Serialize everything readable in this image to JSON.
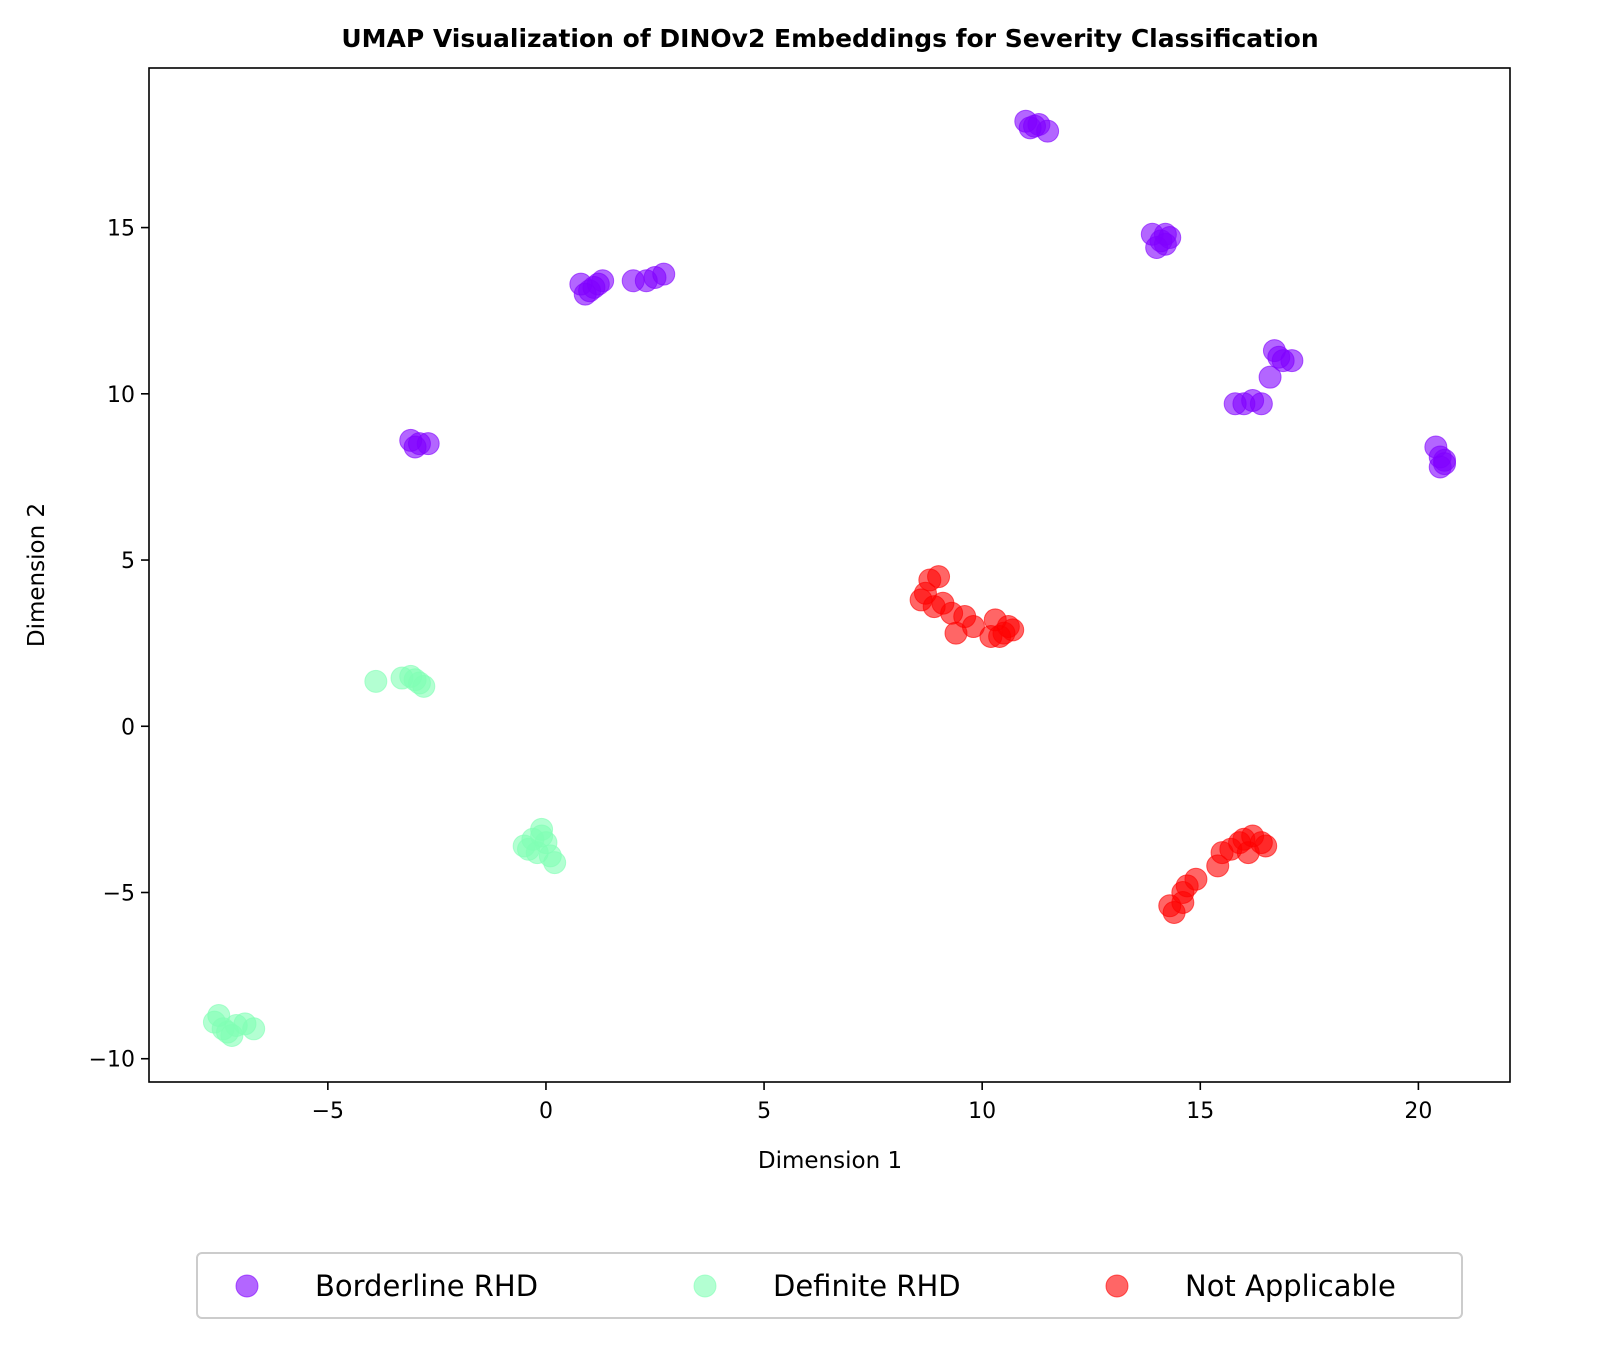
{
  "chart_data": {
    "type": "scatter",
    "title": "UMAP Visualization of DINOv2 Embeddings for Severity Classification",
    "xlabel": "Dimension 1",
    "ylabel": "Dimension 2",
    "xlim": [
      -9.1,
      22.1
    ],
    "ylim": [
      -10.7,
      19.8
    ],
    "xticks": [
      -5,
      0,
      5,
      10,
      15,
      20
    ],
    "xtick_labels": [
      "−5",
      "0",
      "5",
      "10",
      "15",
      "20"
    ],
    "yticks": [
      -10,
      -5,
      0,
      5,
      10,
      15
    ],
    "ytick_labels": [
      "−10",
      "−5",
      "0",
      "5",
      "10",
      "15"
    ],
    "grid": false,
    "legend_position": "bottom-center",
    "series": [
      {
        "name": "Borderline RHD",
        "color": "#8000ff",
        "points": [
          [
            11.0,
            18.2
          ],
          [
            11.1,
            18.0
          ],
          [
            11.3,
            18.1
          ],
          [
            11.5,
            17.9
          ],
          [
            11.2,
            18.05
          ],
          [
            13.9,
            14.8
          ],
          [
            14.1,
            14.6
          ],
          [
            14.2,
            14.8
          ],
          [
            14.0,
            14.4
          ],
          [
            14.3,
            14.7
          ],
          [
            14.2,
            14.5
          ],
          [
            0.8,
            13.3
          ],
          [
            1.0,
            13.1
          ],
          [
            1.1,
            13.2
          ],
          [
            1.3,
            13.4
          ],
          [
            1.2,
            13.3
          ],
          [
            0.9,
            13.0
          ],
          [
            2.0,
            13.4
          ],
          [
            2.3,
            13.4
          ],
          [
            2.5,
            13.5
          ],
          [
            2.7,
            13.6
          ],
          [
            -3.1,
            8.6
          ],
          [
            -2.9,
            8.5
          ],
          [
            -2.7,
            8.5
          ],
          [
            -3.0,
            8.4
          ],
          [
            15.8,
            9.7
          ],
          [
            16.0,
            9.7
          ],
          [
            16.2,
            9.8
          ],
          [
            16.4,
            9.7
          ],
          [
            16.6,
            10.5
          ],
          [
            16.7,
            11.3
          ],
          [
            16.9,
            11.0
          ],
          [
            17.1,
            11.0
          ],
          [
            16.8,
            11.1
          ],
          [
            20.4,
            8.4
          ],
          [
            20.5,
            8.1
          ],
          [
            20.6,
            7.9
          ],
          [
            20.5,
            7.8
          ],
          [
            20.6,
            8.0
          ]
        ]
      },
      {
        "name": "Definite RHD",
        "color": "#80ffb4",
        "points": [
          [
            -7.6,
            -8.9
          ],
          [
            -7.4,
            -9.1
          ],
          [
            -7.3,
            -9.2
          ],
          [
            -7.1,
            -9.0
          ],
          [
            -6.9,
            -8.95
          ],
          [
            -6.7,
            -9.1
          ],
          [
            -7.5,
            -8.7
          ],
          [
            -7.2,
            -9.3
          ],
          [
            -0.5,
            -3.6
          ],
          [
            -0.3,
            -3.4
          ],
          [
            -0.1,
            -3.1
          ],
          [
            0.0,
            -3.5
          ],
          [
            -0.2,
            -3.8
          ],
          [
            0.1,
            -3.9
          ],
          [
            0.2,
            -4.1
          ],
          [
            -0.1,
            -3.3
          ],
          [
            -0.4,
            -3.7
          ],
          [
            -3.9,
            1.35
          ],
          [
            -3.3,
            1.45
          ],
          [
            -3.0,
            1.4
          ],
          [
            -2.9,
            1.3
          ],
          [
            -2.8,
            1.2
          ],
          [
            -3.1,
            1.5
          ]
        ]
      },
      {
        "name": "Not Applicable",
        "color": "#ff0000",
        "points": [
          [
            8.8,
            4.4
          ],
          [
            9.0,
            4.5
          ],
          [
            8.7,
            4.0
          ],
          [
            8.6,
            3.8
          ],
          [
            8.9,
            3.6
          ],
          [
            9.1,
            3.7
          ],
          [
            9.3,
            3.4
          ],
          [
            9.4,
            2.8
          ],
          [
            9.6,
            3.3
          ],
          [
            9.8,
            3.0
          ],
          [
            10.2,
            2.7
          ],
          [
            10.3,
            3.2
          ],
          [
            10.5,
            2.8
          ],
          [
            10.6,
            3.0
          ],
          [
            10.7,
            2.9
          ],
          [
            10.4,
            2.7
          ],
          [
            14.3,
            -5.4
          ],
          [
            14.4,
            -5.6
          ],
          [
            14.6,
            -5.3
          ],
          [
            14.6,
            -5.0
          ],
          [
            14.7,
            -4.8
          ],
          [
            14.9,
            -4.6
          ],
          [
            15.4,
            -4.2
          ],
          [
            15.5,
            -3.8
          ],
          [
            15.7,
            -3.7
          ],
          [
            16.0,
            -3.4
          ],
          [
            16.1,
            -3.8
          ],
          [
            16.2,
            -3.3
          ],
          [
            16.4,
            -3.5
          ],
          [
            16.5,
            -3.6
          ],
          [
            15.9,
            -3.5
          ]
        ]
      }
    ]
  }
}
